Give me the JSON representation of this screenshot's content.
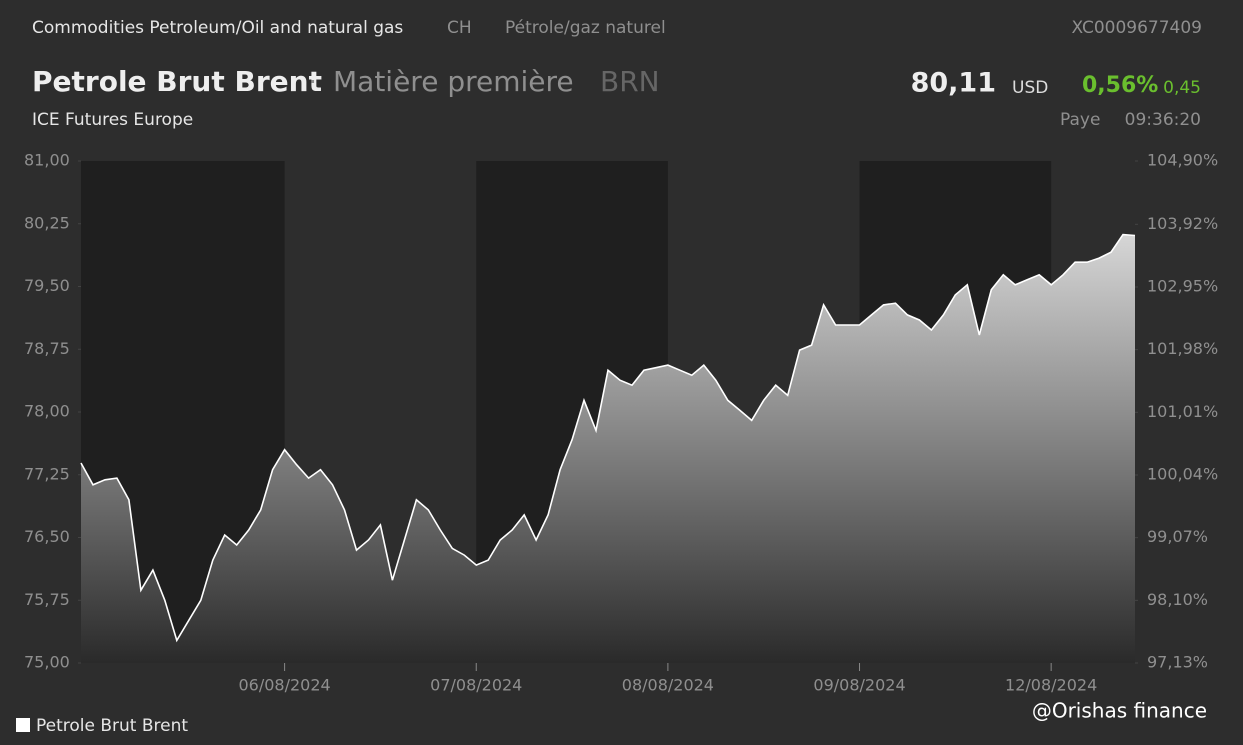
{
  "header": {
    "category": "Commodities Petroleum/Oil and natural gas",
    "country": "CH",
    "category_fr": "Pétrole/gaz naturel",
    "isin": "XC0009677409",
    "name": "Petrole Brut Brent",
    "separator": "·",
    "kind": "Matière première",
    "ticker": "BRN",
    "price": "80,11",
    "currency": "USD",
    "change_pct": "0,56%",
    "change": "0,45",
    "exchange": "ICE Futures Europe",
    "status": "Paye",
    "time": "09:36:20"
  },
  "watermark": "@Orishas finance",
  "chart_data": {
    "type": "area",
    "categories": [
      null,
      null,
      null,
      null,
      null,
      null,
      null,
      null,
      null,
      null,
      null,
      null,
      null,
      null,
      null,
      null,
      null,
      "06/08/2024",
      null,
      null,
      null,
      null,
      null,
      null,
      null,
      null,
      null,
      null,
      null,
      null,
      null,
      null,
      null,
      "07/08/2024",
      null,
      null,
      null,
      null,
      null,
      null,
      null,
      null,
      null,
      null,
      null,
      null,
      null,
      null,
      null,
      "08/08/2024",
      null,
      null,
      null,
      null,
      null,
      null,
      null,
      null,
      null,
      null,
      null,
      null,
      null,
      null,
      null,
      "09/08/2024",
      null,
      null,
      null,
      null,
      null,
      null,
      null,
      null,
      null,
      null,
      null,
      null,
      null,
      null,
      null,
      "12/08/2024",
      null,
      null,
      null,
      null,
      null,
      null,
      null
    ],
    "series": [
      {
        "name": "Petrole Brut Brent",
        "color": "#ffffff",
        "values": [
          77.39,
          77.13,
          77.19,
          77.21,
          76.95,
          75.87,
          76.11,
          75.75,
          75.27,
          75.51,
          75.75,
          76.23,
          76.53,
          76.41,
          76.59,
          76.83,
          77.31,
          77.55,
          77.37,
          77.21,
          77.31,
          77.13,
          76.83,
          76.35,
          76.47,
          76.65,
          75.99,
          76.47,
          76.95,
          76.83,
          76.59,
          76.37,
          76.29,
          76.17,
          76.23,
          76.47,
          76.59,
          76.77,
          76.47,
          76.77,
          77.31,
          77.67,
          78.14,
          77.78,
          78.5,
          78.38,
          78.32,
          78.5,
          78.53,
          78.56,
          78.5,
          78.44,
          78.56,
          78.38,
          78.14,
          78.02,
          77.9,
          78.14,
          78.32,
          78.2,
          78.74,
          78.8,
          79.28,
          79.04,
          79.04,
          79.04,
          79.16,
          79.28,
          79.3,
          79.16,
          79.1,
          78.98,
          79.16,
          79.4,
          79.52,
          78.92,
          79.46,
          79.64,
          79.52,
          79.58,
          79.64,
          79.52,
          79.64,
          79.79,
          79.79,
          79.84,
          79.91,
          80.12,
          80.11
        ]
      }
    ],
    "ylim": [
      75,
      81
    ],
    "yticks": [
      {
        "value": 75,
        "label": "75,00"
      },
      {
        "value": 75.75,
        "label": "75,75"
      },
      {
        "value": 76.5,
        "label": "76,50"
      },
      {
        "value": 77.25,
        "label": "77,25"
      },
      {
        "value": 78,
        "label": "78,00"
      },
      {
        "value": 78.75,
        "label": "78,75"
      },
      {
        "value": 79.5,
        "label": "79,50"
      },
      {
        "value": 80.25,
        "label": "80,25"
      },
      {
        "value": 81,
        "label": "81,00"
      }
    ],
    "y2lim": [
      97.13,
      104.9
    ],
    "y2ticks": [
      {
        "value": 97.13,
        "label": "97,13%"
      },
      {
        "value": 98.1,
        "label": "98,10%"
      },
      {
        "value": 99.07,
        "label": "99,07%"
      },
      {
        "value": 100.04,
        "label": "100,04%"
      },
      {
        "value": 101.01,
        "label": "101,01%"
      },
      {
        "value": 101.98,
        "label": "101,98%"
      },
      {
        "value": 102.95,
        "label": "102,95%"
      },
      {
        "value": 103.92,
        "label": "103,92%"
      },
      {
        "value": 104.9,
        "label": "104,90%"
      }
    ],
    "legend": "bottom-left"
  }
}
